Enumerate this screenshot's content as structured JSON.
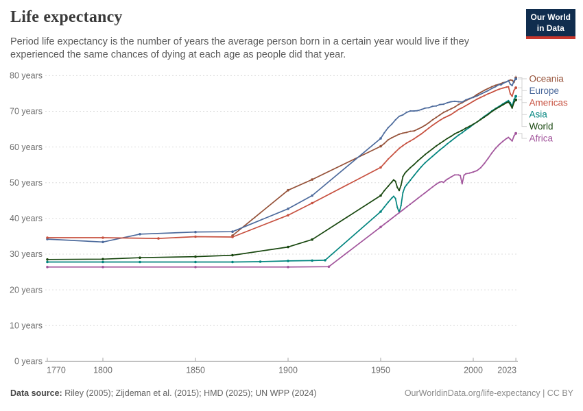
{
  "header": {
    "title": "Life expectancy",
    "subtitle": "Period life expectancy is the number of years the average person born in a certain year would live if they experienced the same chances of dying at each age as people did that year."
  },
  "logo": {
    "line1": "Our World",
    "line2": "in Data",
    "bg_color": "#102D4E",
    "accent_color": "#C8362C"
  },
  "chart_data": {
    "type": "line",
    "title": "Life expectancy",
    "unit": "years",
    "x_range": [
      1770,
      2023
    ],
    "y_range": [
      0,
      80
    ],
    "grid": "horizontal-dashed",
    "legend_position": "right-of-lines",
    "x_ticks": [
      1770,
      1800,
      1850,
      1900,
      1950,
      2000,
      2023
    ],
    "x_tick_labels": [
      "1770",
      "1800",
      "1850",
      "1900",
      "1950",
      "2000",
      "2023"
    ],
    "y_ticks": [
      0,
      10,
      20,
      30,
      40,
      50,
      60,
      70,
      80
    ],
    "y_tick_labels": [
      "0 years",
      "10 years",
      "20 years",
      "30 years",
      "40 years",
      "50 years",
      "60 years",
      "70 years",
      "80 years"
    ],
    "series": [
      {
        "name": "Oceania",
        "color": "#955138",
        "points": [
          [
            1870,
            35.2
          ],
          [
            1900,
            47.9
          ],
          [
            1913,
            50.9
          ],
          [
            1950,
            60.2
          ],
          [
            1952,
            61.0
          ],
          [
            1954,
            62.0
          ],
          [
            1956,
            62.6
          ],
          [
            1958,
            63.1
          ],
          [
            1960,
            63.6
          ],
          [
            1962,
            63.9
          ],
          [
            1964,
            64.1
          ],
          [
            1966,
            64.4
          ],
          [
            1968,
            64.5
          ],
          [
            1970,
            65.0
          ],
          [
            1972,
            65.5
          ],
          [
            1974,
            66.1
          ],
          [
            1976,
            66.8
          ],
          [
            1978,
            67.6
          ],
          [
            1980,
            68.3
          ],
          [
            1982,
            69.0
          ],
          [
            1984,
            69.7
          ],
          [
            1986,
            70.2
          ],
          [
            1988,
            70.7
          ],
          [
            1990,
            71.2
          ],
          [
            1992,
            71.9
          ],
          [
            1994,
            72.4
          ],
          [
            1996,
            73.0
          ],
          [
            1998,
            73.5
          ],
          [
            2000,
            74.0
          ],
          [
            2002,
            74.7
          ],
          [
            2004,
            75.3
          ],
          [
            2006,
            75.9
          ],
          [
            2008,
            76.4
          ],
          [
            2010,
            76.9
          ],
          [
            2012,
            77.3
          ],
          [
            2014,
            77.6
          ],
          [
            2016,
            78.0
          ],
          [
            2018,
            78.3
          ],
          [
            2019,
            78.5
          ],
          [
            2020,
            78.8
          ],
          [
            2021,
            78.7
          ],
          [
            2022,
            78.1
          ],
          [
            2023,
            79.4
          ]
        ]
      },
      {
        "name": "Europe",
        "color": "#4C6A9C",
        "points": [
          [
            1770,
            34.2
          ],
          [
            1800,
            33.4
          ],
          [
            1820,
            35.6
          ],
          [
            1850,
            36.2
          ],
          [
            1870,
            36.3
          ],
          [
            1900,
            42.7
          ],
          [
            1913,
            46.4
          ],
          [
            1950,
            62.4
          ],
          [
            1952,
            64.0
          ],
          [
            1954,
            65.4
          ],
          [
            1956,
            66.4
          ],
          [
            1958,
            67.6
          ],
          [
            1960,
            68.6
          ],
          [
            1962,
            69.0
          ],
          [
            1964,
            69.7
          ],
          [
            1966,
            70.1
          ],
          [
            1968,
            70.1
          ],
          [
            1970,
            70.2
          ],
          [
            1972,
            70.5
          ],
          [
            1974,
            70.9
          ],
          [
            1976,
            71.0
          ],
          [
            1978,
            71.4
          ],
          [
            1980,
            71.5
          ],
          [
            1982,
            71.9
          ],
          [
            1984,
            72.0
          ],
          [
            1986,
            72.4
          ],
          [
            1988,
            72.7
          ],
          [
            1990,
            72.8
          ],
          [
            1992,
            72.7
          ],
          [
            1994,
            72.6
          ],
          [
            1996,
            73.2
          ],
          [
            1998,
            73.6
          ],
          [
            2000,
            73.9
          ],
          [
            2002,
            74.3
          ],
          [
            2004,
            74.8
          ],
          [
            2006,
            75.3
          ],
          [
            2008,
            75.8
          ],
          [
            2010,
            76.4
          ],
          [
            2012,
            76.9
          ],
          [
            2014,
            77.5
          ],
          [
            2015,
            77.4
          ],
          [
            2016,
            77.8
          ],
          [
            2018,
            78.3
          ],
          [
            2019,
            78.6
          ],
          [
            2020,
            77.6
          ],
          [
            2021,
            77.2
          ],
          [
            2022,
            78.5
          ],
          [
            2023,
            79.1
          ]
        ]
      },
      {
        "name": "Americas",
        "color": "#C7503F",
        "points": [
          [
            1770,
            34.6
          ],
          [
            1800,
            34.6
          ],
          [
            1830,
            34.4
          ],
          [
            1850,
            34.9
          ],
          [
            1870,
            34.8
          ],
          [
            1900,
            40.9
          ],
          [
            1913,
            44.3
          ],
          [
            1950,
            54.3
          ],
          [
            1952,
            55.4
          ],
          [
            1954,
            56.6
          ],
          [
            1956,
            57.6
          ],
          [
            1958,
            58.6
          ],
          [
            1960,
            59.6
          ],
          [
            1962,
            60.4
          ],
          [
            1964,
            61.1
          ],
          [
            1966,
            61.7
          ],
          [
            1968,
            62.3
          ],
          [
            1970,
            63.0
          ],
          [
            1972,
            63.7
          ],
          [
            1974,
            64.5
          ],
          [
            1976,
            65.3
          ],
          [
            1978,
            66.1
          ],
          [
            1980,
            66.8
          ],
          [
            1982,
            67.5
          ],
          [
            1984,
            68.1
          ],
          [
            1986,
            68.6
          ],
          [
            1988,
            69.1
          ],
          [
            1990,
            69.8
          ],
          [
            1992,
            70.5
          ],
          [
            1994,
            71.0
          ],
          [
            1996,
            71.6
          ],
          [
            1998,
            72.2
          ],
          [
            2000,
            72.8
          ],
          [
            2002,
            73.4
          ],
          [
            2004,
            73.9
          ],
          [
            2006,
            74.4
          ],
          [
            2008,
            74.9
          ],
          [
            2010,
            75.3
          ],
          [
            2012,
            75.8
          ],
          [
            2014,
            76.2
          ],
          [
            2016,
            76.5
          ],
          [
            2018,
            76.8
          ],
          [
            2019,
            76.9
          ],
          [
            2020,
            74.9
          ],
          [
            2021,
            74.2
          ],
          [
            2022,
            75.9
          ],
          [
            2023,
            76.6
          ]
        ]
      },
      {
        "name": "Asia",
        "color": "#00847E",
        "points": [
          [
            1770,
            27.8
          ],
          [
            1800,
            27.8
          ],
          [
            1820,
            27.8
          ],
          [
            1850,
            27.8
          ],
          [
            1870,
            27.8
          ],
          [
            1885,
            27.9
          ],
          [
            1900,
            28.1
          ],
          [
            1913,
            28.2
          ],
          [
            1920,
            28.3
          ],
          [
            1950,
            41.9
          ],
          [
            1952,
            43.2
          ],
          [
            1954,
            44.5
          ],
          [
            1956,
            45.7
          ],
          [
            1957,
            46.2
          ],
          [
            1958,
            45.6
          ],
          [
            1959,
            43.1
          ],
          [
            1960,
            41.7
          ],
          [
            1961,
            43.6
          ],
          [
            1962,
            47.2
          ],
          [
            1963,
            48.7
          ],
          [
            1964,
            49.4
          ],
          [
            1966,
            50.7
          ],
          [
            1968,
            52.0
          ],
          [
            1970,
            53.3
          ],
          [
            1972,
            54.5
          ],
          [
            1974,
            55.6
          ],
          [
            1976,
            56.5
          ],
          [
            1978,
            57.4
          ],
          [
            1980,
            58.3
          ],
          [
            1982,
            59.2
          ],
          [
            1984,
            60.0
          ],
          [
            1986,
            60.9
          ],
          [
            1988,
            61.7
          ],
          [
            1990,
            62.5
          ],
          [
            1992,
            63.3
          ],
          [
            1994,
            64.0
          ],
          [
            1996,
            64.8
          ],
          [
            1998,
            65.5
          ],
          [
            2000,
            66.3
          ],
          [
            2002,
            67.0
          ],
          [
            2004,
            67.8
          ],
          [
            2006,
            68.6
          ],
          [
            2008,
            69.3
          ],
          [
            2010,
            70.1
          ],
          [
            2012,
            70.8
          ],
          [
            2014,
            71.4
          ],
          [
            2016,
            72.1
          ],
          [
            2018,
            72.7
          ],
          [
            2019,
            73.0
          ],
          [
            2020,
            72.4
          ],
          [
            2021,
            71.4
          ],
          [
            2022,
            73.3
          ],
          [
            2023,
            74.2
          ]
        ]
      },
      {
        "name": "World",
        "color": "#18470F",
        "points": [
          [
            1770,
            28.5
          ],
          [
            1800,
            28.6
          ],
          [
            1820,
            29.0
          ],
          [
            1850,
            29.3
          ],
          [
            1870,
            29.7
          ],
          [
            1900,
            32.0
          ],
          [
            1913,
            34.1
          ],
          [
            1950,
            46.4
          ],
          [
            1952,
            47.8
          ],
          [
            1954,
            49.0
          ],
          [
            1956,
            50.2
          ],
          [
            1957,
            50.8
          ],
          [
            1958,
            50.4
          ],
          [
            1959,
            48.7
          ],
          [
            1960,
            47.8
          ],
          [
            1961,
            49.3
          ],
          [
            1962,
            51.7
          ],
          [
            1963,
            52.6
          ],
          [
            1964,
            53.2
          ],
          [
            1966,
            54.2
          ],
          [
            1968,
            55.1
          ],
          [
            1970,
            56.1
          ],
          [
            1972,
            57.0
          ],
          [
            1974,
            57.9
          ],
          [
            1976,
            58.7
          ],
          [
            1978,
            59.5
          ],
          [
            1980,
            60.3
          ],
          [
            1982,
            61.0
          ],
          [
            1984,
            61.7
          ],
          [
            1986,
            62.4
          ],
          [
            1988,
            63.0
          ],
          [
            1990,
            63.7
          ],
          [
            1992,
            64.2
          ],
          [
            1994,
            64.7
          ],
          [
            1996,
            65.3
          ],
          [
            1998,
            65.8
          ],
          [
            2000,
            66.4
          ],
          [
            2002,
            67.0
          ],
          [
            2004,
            67.7
          ],
          [
            2006,
            68.4
          ],
          [
            2008,
            69.1
          ],
          [
            2010,
            69.9
          ],
          [
            2012,
            70.6
          ],
          [
            2014,
            71.2
          ],
          [
            2016,
            71.8
          ],
          [
            2018,
            72.4
          ],
          [
            2019,
            72.6
          ],
          [
            2020,
            71.9
          ],
          [
            2021,
            70.9
          ],
          [
            2022,
            72.5
          ],
          [
            2023,
            73.2
          ]
        ]
      },
      {
        "name": "Africa",
        "color": "#A2559C",
        "points": [
          [
            1770,
            26.4
          ],
          [
            1800,
            26.4
          ],
          [
            1850,
            26.4
          ],
          [
            1900,
            26.4
          ],
          [
            1922,
            26.5
          ],
          [
            1950,
            37.6
          ],
          [
            1952,
            38.4
          ],
          [
            1954,
            39.2
          ],
          [
            1956,
            40.0
          ],
          [
            1958,
            40.8
          ],
          [
            1960,
            41.6
          ],
          [
            1962,
            42.4
          ],
          [
            1964,
            43.2
          ],
          [
            1966,
            44.0
          ],
          [
            1968,
            44.8
          ],
          [
            1970,
            45.6
          ],
          [
            1972,
            46.4
          ],
          [
            1974,
            47.2
          ],
          [
            1976,
            48.0
          ],
          [
            1978,
            48.8
          ],
          [
            1980,
            49.6
          ],
          [
            1982,
            50.2
          ],
          [
            1983,
            50.3
          ],
          [
            1984,
            50.1
          ],
          [
            1985,
            50.6
          ],
          [
            1986,
            51.0
          ],
          [
            1988,
            51.6
          ],
          [
            1990,
            52.2
          ],
          [
            1992,
            52.2
          ],
          [
            1993,
            52.0
          ],
          [
            1994,
            49.7
          ],
          [
            1995,
            52.1
          ],
          [
            1996,
            52.5
          ],
          [
            1998,
            52.7
          ],
          [
            2000,
            53.0
          ],
          [
            2002,
            53.4
          ],
          [
            2004,
            54.2
          ],
          [
            2006,
            55.4
          ],
          [
            2008,
            56.8
          ],
          [
            2010,
            58.3
          ],
          [
            2012,
            59.6
          ],
          [
            2014,
            60.7
          ],
          [
            2016,
            61.6
          ],
          [
            2018,
            62.4
          ],
          [
            2019,
            62.7
          ],
          [
            2020,
            62.2
          ],
          [
            2021,
            61.7
          ],
          [
            2022,
            63.1
          ],
          [
            2023,
            63.8
          ]
        ]
      }
    ]
  },
  "footer": {
    "datasource_label": "Data source:",
    "datasource_text": "Riley (2005); Zijdeman et al. (2015); HMD (2025); UN WPP (2024)",
    "credit": "OurWorldinData.org/life-expectancy | CC BY"
  }
}
